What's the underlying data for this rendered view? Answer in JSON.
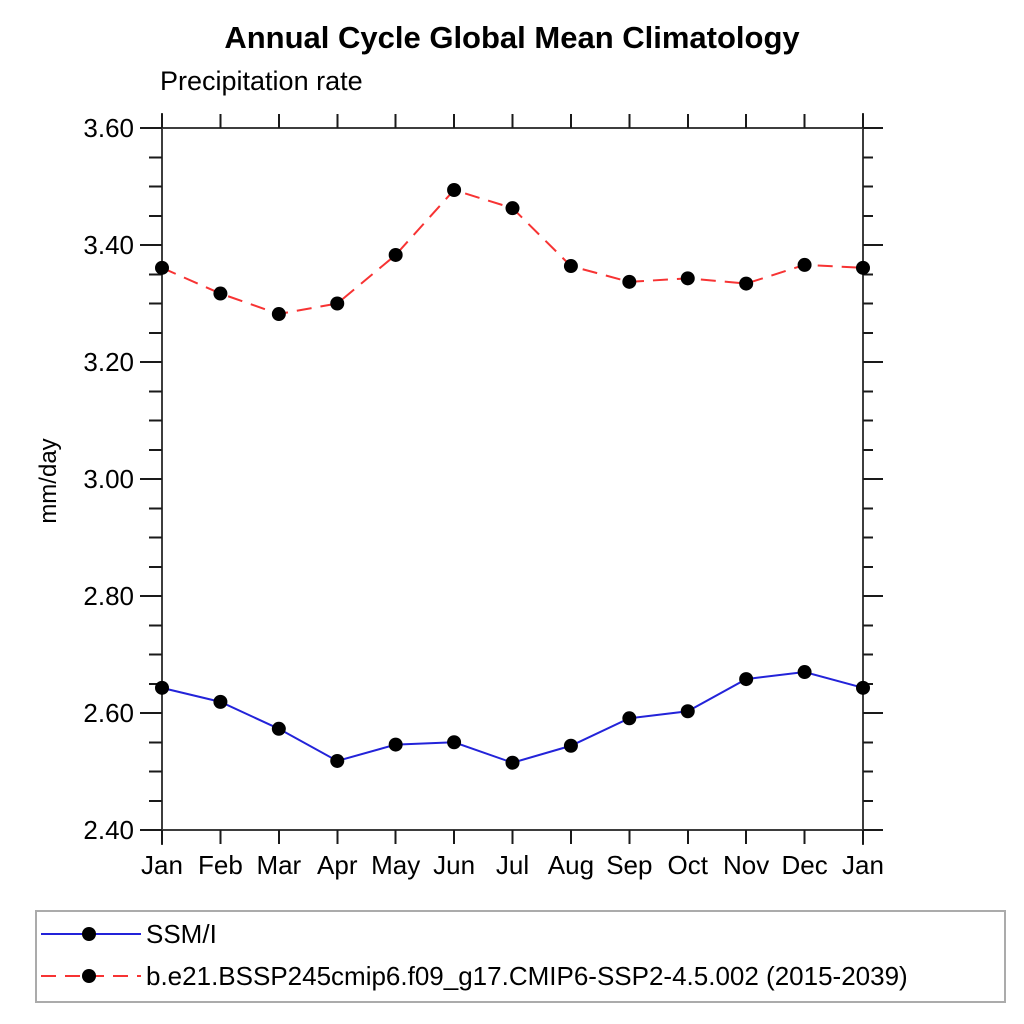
{
  "title": "Annual Cycle Global Mean Climatology",
  "subtitle": "Precipitation rate",
  "chart_data": {
    "type": "line",
    "title": "Annual Cycle Global Mean Climatology",
    "subtitle": "Precipitation rate",
    "ylabel": "mm/day",
    "xlabel": "",
    "categories": [
      "Jan",
      "Feb",
      "Mar",
      "Apr",
      "May",
      "Jun",
      "Jul",
      "Aug",
      "Sep",
      "Oct",
      "Nov",
      "Dec",
      "Jan"
    ],
    "series": [
      {
        "name": "SSM/I",
        "line_color": "#2323d9",
        "line_style": "solid",
        "marker": "filled-circle",
        "marker_color": "#000000",
        "values": [
          2.643,
          2.619,
          2.573,
          2.518,
          2.546,
          2.55,
          2.515,
          2.544,
          2.591,
          2.603,
          2.658,
          2.67,
          2.643
        ]
      },
      {
        "name": "b.e21.BSSP245cmip6.f09_g17.CMIP6-SSP2-4.5.002 (2015-2039)",
        "line_color": "#f73333",
        "line_style": "dashed",
        "marker": "filled-circle",
        "marker_color": "#000000",
        "values": [
          3.361,
          3.317,
          3.282,
          3.3,
          3.383,
          3.494,
          3.463,
          3.364,
          3.337,
          3.343,
          3.334,
          3.366,
          3.361
        ]
      }
    ],
    "ylim": [
      2.4,
      3.6
    ],
    "ytick_major_interval": 0.2,
    "ytick_minor_interval": 0.05,
    "ytick_labels": [
      "2.40",
      "2.60",
      "2.80",
      "3.00",
      "3.20",
      "3.40",
      "3.60"
    ],
    "grid": "off",
    "legend_position": "bottom-left-box"
  },
  "legend": {
    "entries": [
      {
        "label": "SSM/I",
        "line_color": "#2323d9",
        "line_style": "solid",
        "marker_color": "#000000"
      },
      {
        "label": "b.e21.BSSP245cmip6.f09_g17.CMIP6-SSP2-4.5.002 (2015-2039)",
        "line_color": "#f73333",
        "line_style": "dashed",
        "marker_color": "#000000"
      }
    ]
  },
  "colors": {
    "frame": "#3d3d3d",
    "tick": "#1a1a1a",
    "text": "#000000",
    "legend_border": "#ababab"
  }
}
